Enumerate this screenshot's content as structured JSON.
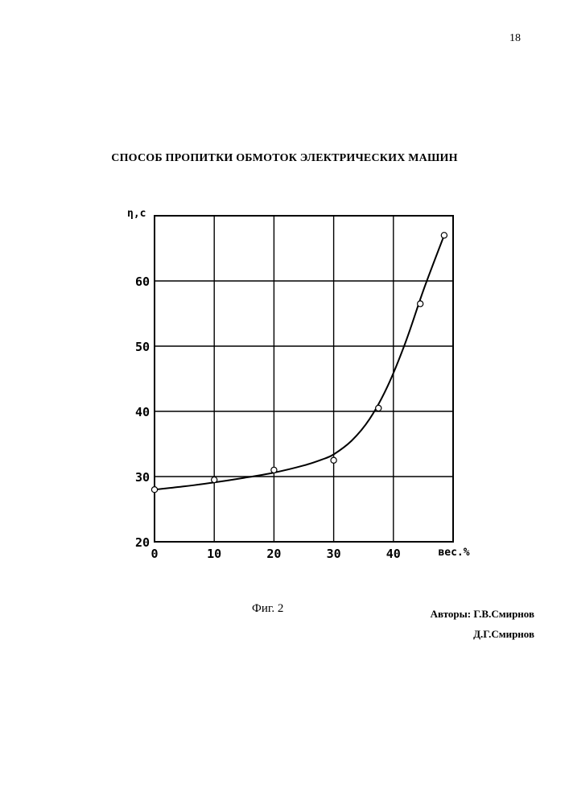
{
  "page_number": "18",
  "title": "СПОСОБ ПРОПИТКИ ОБМОТОК ЭЛЕКТРИЧЕСКИХ МАШИН",
  "caption": "Фиг. 2",
  "authors": {
    "line1": "Авторы: Г.В.Смирнов",
    "line2": "Д.Г.Смирнов"
  },
  "chart_data": {
    "type": "line",
    "title": "",
    "xlabel": "вес.%",
    "ylabel": "η,с",
    "xlim": [
      0,
      50
    ],
    "ylim": [
      20,
      70
    ],
    "x_ticks": [
      0,
      10,
      20,
      30,
      40
    ],
    "y_ticks": [
      20,
      30,
      40,
      50,
      60
    ],
    "grid": true,
    "series": [
      {
        "markers": "open-circle",
        "x": [
          0,
          10,
          20,
          30,
          37.5,
          44.5,
          48.5
        ],
        "values": [
          28,
          29.5,
          31,
          32.5,
          40.5,
          56.5,
          67
        ]
      }
    ],
    "fitted_curve": {
      "x": [
        0,
        5,
        10,
        15,
        20,
        25,
        28,
        30,
        33,
        36,
        39,
        42,
        45,
        48.5
      ],
      "values": [
        28,
        28.5,
        29.1,
        29.8,
        30.6,
        31.7,
        32.6,
        33.4,
        35.5,
        38.8,
        43.8,
        50.5,
        58.5,
        67
      ]
    }
  }
}
